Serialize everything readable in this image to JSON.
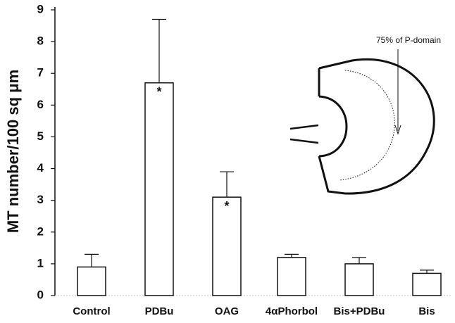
{
  "chart_data": {
    "type": "bar",
    "y_label": "MT number/100 sq μm",
    "categories": [
      "Control",
      "PDBu",
      "OAG",
      "4αPhorbol",
      "Bis+PDBu",
      "Bis"
    ],
    "values": [
      0.9,
      6.7,
      3.1,
      1.2,
      1.0,
      0.7
    ],
    "errors": [
      0.4,
      2.0,
      0.8,
      0.1,
      0.2,
      0.1
    ],
    "color": "#ffffff",
    "ylim": [
      0,
      9
    ],
    "yticks": [
      0,
      1,
      2,
      3,
      4,
      5,
      6,
      7,
      8,
      9
    ],
    "grid": false,
    "annotations": [
      {
        "text": "*",
        "category": "PDBu"
      },
      {
        "text": "*",
        "category": "OAG"
      }
    ],
    "inset_label": "75% of P-domain"
  }
}
